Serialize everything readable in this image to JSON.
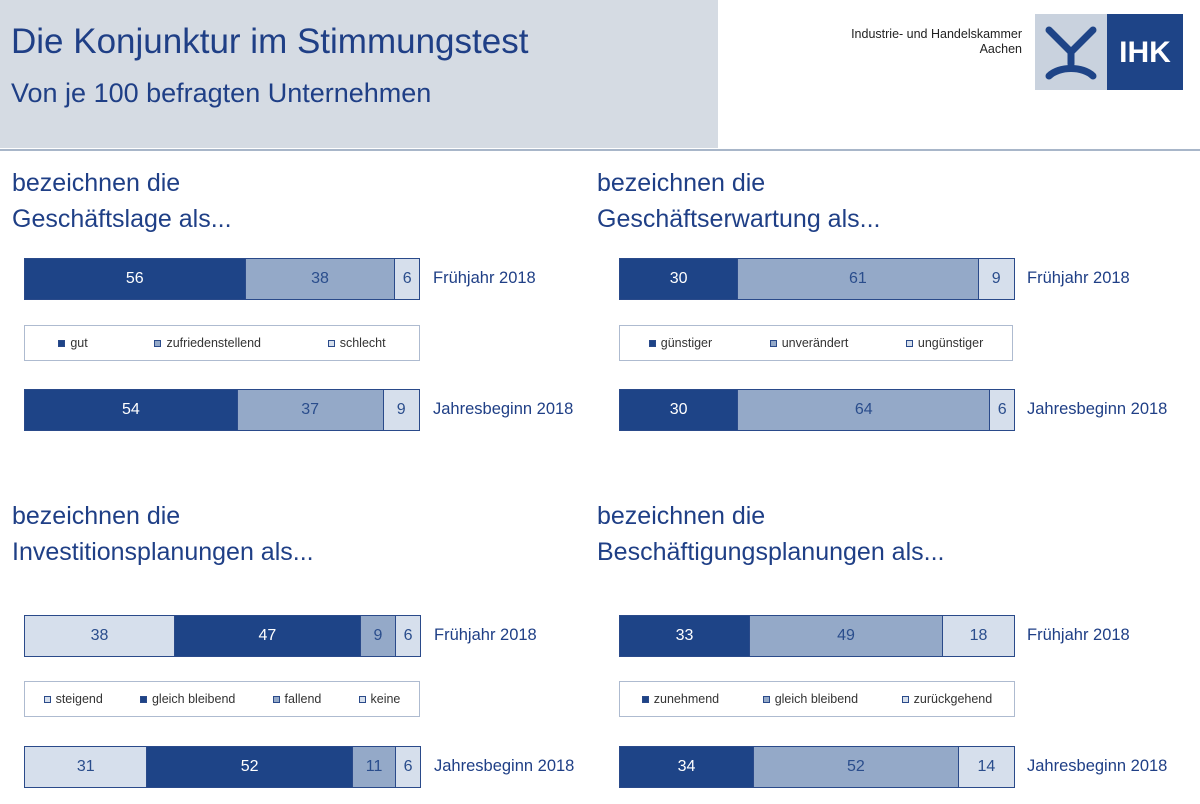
{
  "header": {
    "title": "Die Konjunktur im Stimmungstest",
    "subtitle": "Von je 100 befragten Unternehmen",
    "org_line1": "Industrie- und Handelskammer",
    "org_line2": "Aachen",
    "logo_text": "IHK"
  },
  "colors": {
    "dark": "#1e4487",
    "mid": "#94a9c8",
    "light": "#d6dfec",
    "text": "#1f3f86"
  },
  "chart_data": [
    {
      "type": "bar",
      "stacked": true,
      "orientation": "horizontal",
      "title_line1": "bezeichnen die",
      "title_line2": "Geschäftslage als...",
      "categories": [
        "Frühjahr 2018",
        "Jahresbeginn 2018"
      ],
      "series": [
        {
          "name": "gut",
          "color": "dark",
          "values": [
            56,
            54
          ]
        },
        {
          "name": "zufriedenstellend",
          "color": "mid",
          "values": [
            38,
            37
          ]
        },
        {
          "name": "schlecht",
          "color": "light",
          "values": [
            6,
            9
          ]
        }
      ],
      "xlim": [
        0,
        100
      ]
    },
    {
      "type": "bar",
      "stacked": true,
      "orientation": "horizontal",
      "title_line1": "bezeichnen die",
      "title_line2": "Geschäftserwartung als...",
      "categories": [
        "Frühjahr 2018",
        "Jahresbeginn 2018"
      ],
      "series": [
        {
          "name": "günstiger",
          "color": "dark",
          "values": [
            30,
            30
          ]
        },
        {
          "name": "unverändert",
          "color": "mid",
          "values": [
            61,
            64
          ]
        },
        {
          "name": "ungünstiger",
          "color": "light",
          "values": [
            9,
            6
          ]
        }
      ],
      "xlim": [
        0,
        100
      ]
    },
    {
      "type": "bar",
      "stacked": true,
      "orientation": "horizontal",
      "title_line1": "bezeichnen die",
      "title_line2": "Investitionsplanungen als...",
      "categories": [
        "Frühjahr 2018",
        "Jahresbeginn 2018"
      ],
      "series": [
        {
          "name": "steigend",
          "color": "light",
          "values": [
            38,
            31
          ]
        },
        {
          "name": "gleich bleibend",
          "color": "dark",
          "values": [
            47,
            52
          ]
        },
        {
          "name": "fallend",
          "color": "mid",
          "values": [
            9,
            11
          ]
        },
        {
          "name": "keine",
          "color": "light",
          "values": [
            6,
            6
          ]
        }
      ],
      "xlim": [
        0,
        100
      ]
    },
    {
      "type": "bar",
      "stacked": true,
      "orientation": "horizontal",
      "title_line1": "bezeichnen die",
      "title_line2": "Beschäftigungsplanungen als...",
      "categories": [
        "Frühjahr 2018",
        "Jahresbeginn 2018"
      ],
      "series": [
        {
          "name": "zunehmend",
          "color": "dark",
          "values": [
            33,
            34
          ]
        },
        {
          "name": "gleich bleibend",
          "color": "mid",
          "values": [
            49,
            52
          ]
        },
        {
          "name": "zurückgehend",
          "color": "light",
          "values": [
            18,
            14
          ]
        }
      ],
      "xlim": [
        0,
        100
      ]
    }
  ]
}
